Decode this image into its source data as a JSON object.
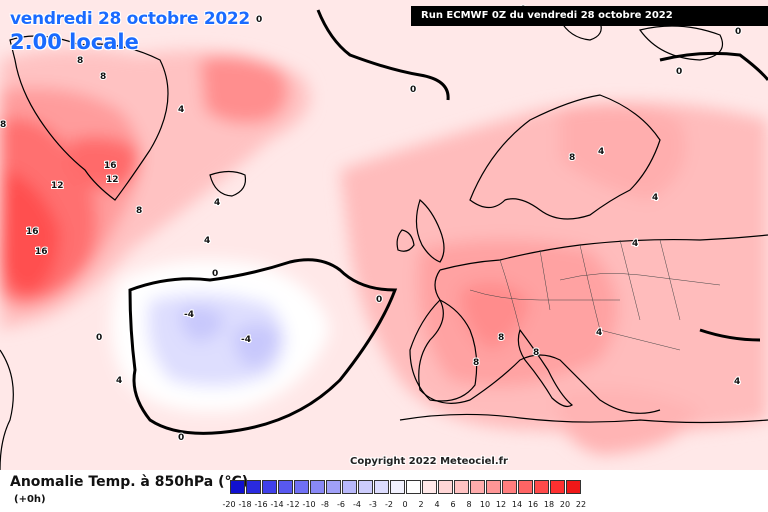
{
  "header": {
    "date": "vendredi 28 octobre 2022",
    "time": "2.00 locale",
    "run": "Run ECMWF 0Z du vendredi 28 octobre 2022"
  },
  "footer": {
    "variable": "Anomalie Temp. à 850hPa (°C)",
    "offset": "(+0h)",
    "copyright": "Copyright 2022 Meteociel.fr"
  },
  "legend": {
    "ticks": [
      "-20",
      "-18",
      "-16",
      "-14",
      "-12",
      "-10",
      "-8",
      "-6",
      "-4",
      "-3",
      "-2",
      "0",
      "2",
      "4",
      "6",
      "8",
      "10",
      "12",
      "14",
      "16",
      "18",
      "20",
      "22"
    ],
    "colors": [
      "#1010d0",
      "#2a2ae0",
      "#4040ea",
      "#5858f0",
      "#7070f4",
      "#8888f6",
      "#a0a0f8",
      "#b8b8fa",
      "#ccccfc",
      "#dcdcfe",
      "#f2f2ff",
      "#ffffff",
      "#ffe8e8",
      "#ffd6d6",
      "#ffc2c2",
      "#ffacac",
      "#ff9696",
      "#ff7e7e",
      "#ff6464",
      "#ff4a4a",
      "#ff3030",
      "#f01818"
    ]
  },
  "isolines": {
    "labels": [
      "0",
      "0",
      "0",
      "0",
      "0",
      "0",
      "0",
      "0",
      "0",
      "4",
      "4",
      "4",
      "4",
      "4",
      "4",
      "4",
      "4",
      "4",
      "-4",
      "-4",
      "8",
      "8",
      "8",
      "8",
      "8",
      "8",
      "8",
      "8",
      "12",
      "12",
      "16",
      "16",
      "16"
    ]
  },
  "colors": {
    "title_blue": "#1a6bff",
    "coast": "#000000",
    "zero_line": "#000000"
  }
}
